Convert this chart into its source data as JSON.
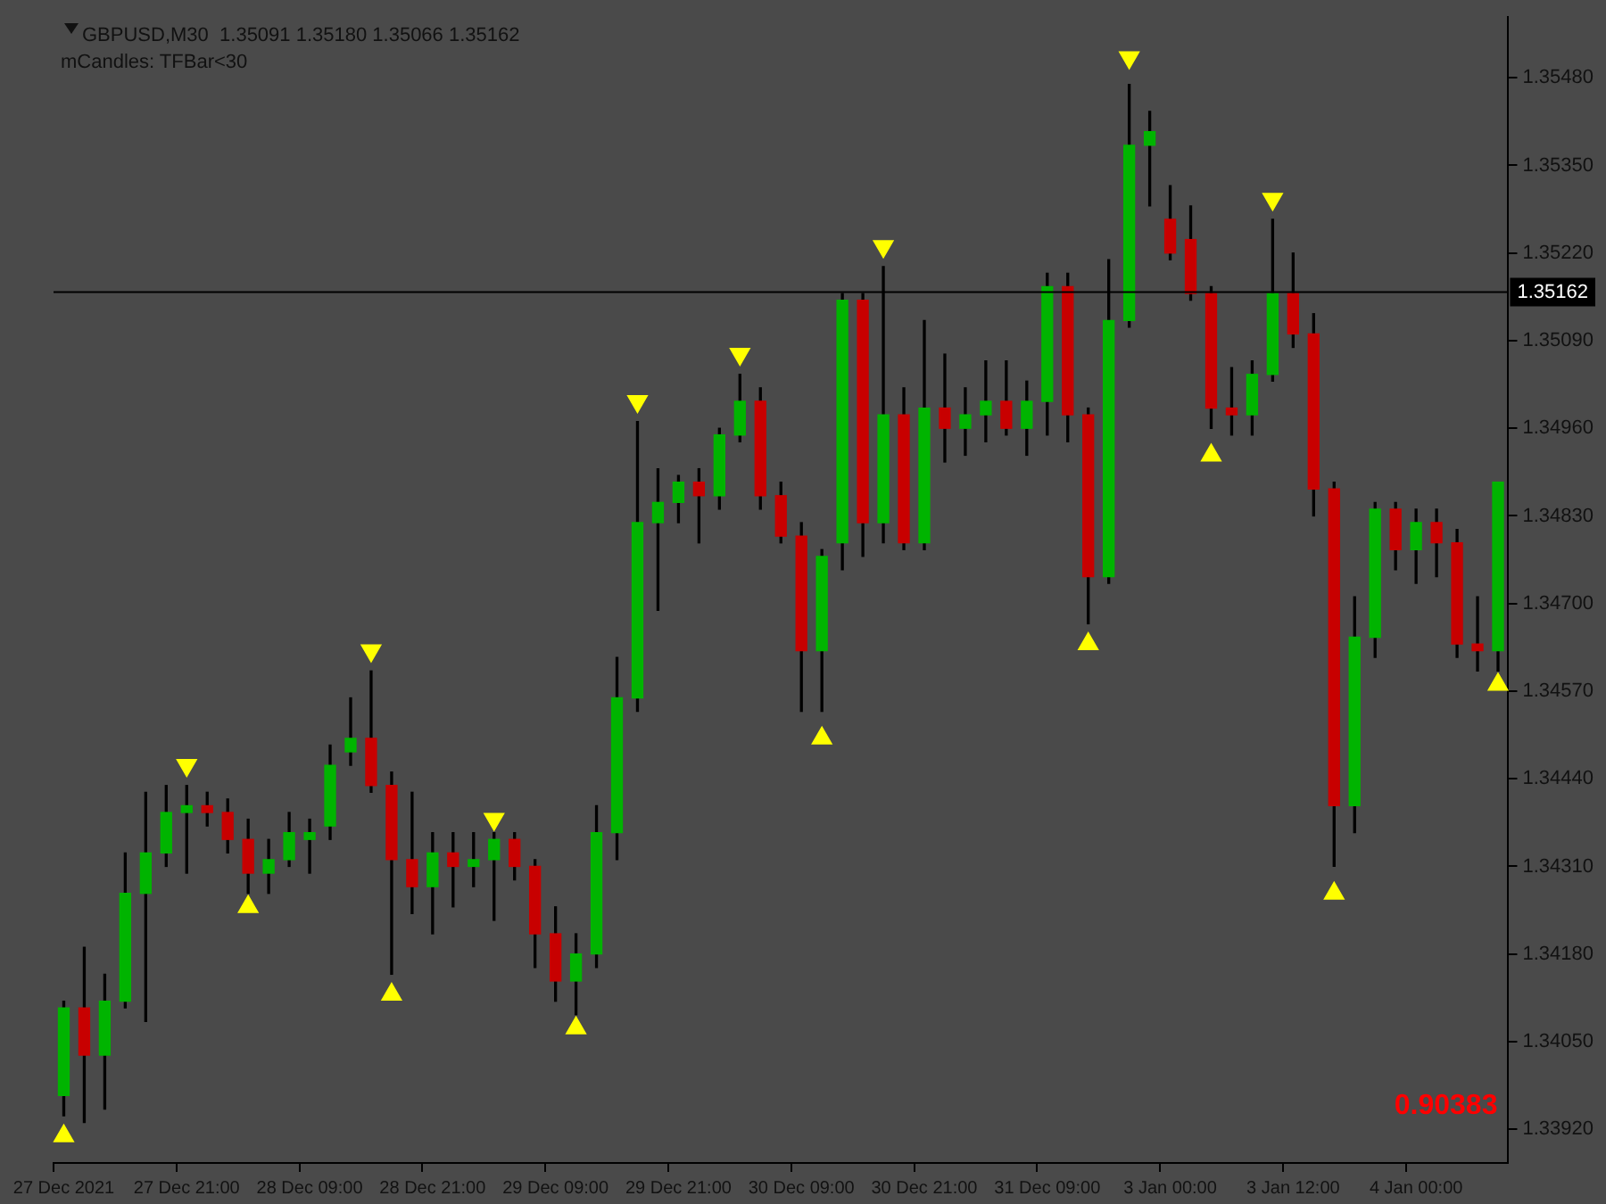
{
  "chart_data": {
    "type": "candlestick",
    "title": "GBPUSD,M30  1.35091 1.35180 1.35066 1.35162",
    "subtitle": "mCandles: TFBar<30",
    "categories": [
      "27 Dec 2021",
      null,
      null,
      null,
      null,
      null,
      "27 Dec 21:00",
      null,
      null,
      null,
      null,
      null,
      "28 Dec 09:00",
      null,
      null,
      null,
      null,
      null,
      "28 Dec 21:00",
      null,
      null,
      null,
      null,
      null,
      "29 Dec 09:00",
      null,
      null,
      null,
      null,
      null,
      "29 Dec 21:00",
      null,
      null,
      null,
      null,
      null,
      "30 Dec 09:00",
      null,
      null,
      null,
      null,
      null,
      "30 Dec 21:00",
      null,
      null,
      null,
      null,
      null,
      "31 Dec 09:00",
      null,
      null,
      null,
      null,
      null,
      "3 Jan 00:00",
      null,
      null,
      null,
      null,
      null,
      "3 Jan 12:00",
      null,
      null,
      null,
      null,
      null,
      "4 Jan 00:00",
      null,
      null,
      null,
      null
    ],
    "ohlc": [
      [
        1.3397,
        1.3411,
        1.3394,
        1.341
      ],
      [
        1.341,
        1.3419,
        1.3393,
        1.3403
      ],
      [
        1.3403,
        1.3415,
        1.3395,
        1.3411
      ],
      [
        1.3411,
        1.3433,
        1.341,
        1.3427
      ],
      [
        1.3427,
        1.3442,
        1.3408,
        1.3433
      ],
      [
        1.3433,
        1.3443,
        1.3431,
        1.3439
      ],
      [
        1.3439,
        1.3443,
        1.343,
        1.344
      ],
      [
        1.344,
        1.3442,
        1.3437,
        1.3439
      ],
      [
        1.3439,
        1.3441,
        1.3433,
        1.3435
      ],
      [
        1.3435,
        1.3438,
        1.3427,
        1.343
      ],
      [
        1.343,
        1.3435,
        1.3427,
        1.3432
      ],
      [
        1.3432,
        1.3439,
        1.3431,
        1.3436
      ],
      [
        1.3435,
        1.3438,
        1.343,
        1.3436
      ],
      [
        1.3437,
        1.3449,
        1.3435,
        1.3446
      ],
      [
        1.3448,
        1.3456,
        1.3446,
        1.345
      ],
      [
        1.345,
        1.346,
        1.3442,
        1.3443
      ],
      [
        1.3443,
        1.3445,
        1.3415,
        1.3432
      ],
      [
        1.3432,
        1.3442,
        1.3424,
        1.3428
      ],
      [
        1.3428,
        1.3436,
        1.3421,
        1.3433
      ],
      [
        1.3433,
        1.3436,
        1.3425,
        1.3431
      ],
      [
        1.3431,
        1.3436,
        1.3428,
        1.3432
      ],
      [
        1.3432,
        1.3436,
        1.3423,
        1.3435
      ],
      [
        1.3435,
        1.3436,
        1.3429,
        1.3431
      ],
      [
        1.3431,
        1.3432,
        1.3416,
        1.3421
      ],
      [
        1.3421,
        1.3425,
        1.3411,
        1.3414
      ],
      [
        1.3414,
        1.3421,
        1.3409,
        1.3418
      ],
      [
        1.3418,
        1.344,
        1.3416,
        1.3436
      ],
      [
        1.3436,
        1.3462,
        1.3432,
        1.3456
      ],
      [
        1.3456,
        1.3497,
        1.3454,
        1.3482
      ],
      [
        1.3482,
        1.349,
        1.3469,
        1.3485
      ],
      [
        1.3485,
        1.3489,
        1.3482,
        1.3488
      ],
      [
        1.3488,
        1.349,
        1.3479,
        1.3486
      ],
      [
        1.3486,
        1.3496,
        1.3484,
        1.3495
      ],
      [
        1.3495,
        1.3504,
        1.3494,
        1.35
      ],
      [
        1.35,
        1.3502,
        1.3484,
        1.3486
      ],
      [
        1.3486,
        1.3488,
        1.3479,
        1.348
      ],
      [
        1.348,
        1.3482,
        1.3454,
        1.3463
      ],
      [
        1.3463,
        1.3478,
        1.3454,
        1.3477
      ],
      [
        1.3479,
        1.3516,
        1.3475,
        1.3515
      ],
      [
        1.3515,
        1.3516,
        1.3477,
        1.3482
      ],
      [
        1.3482,
        1.352,
        1.3479,
        1.3498
      ],
      [
        1.3498,
        1.3502,
        1.3478,
        1.3479
      ],
      [
        1.3479,
        1.3512,
        1.3478,
        1.3499
      ],
      [
        1.3499,
        1.3507,
        1.3491,
        1.3496
      ],
      [
        1.3496,
        1.3502,
        1.3492,
        1.3498
      ],
      [
        1.3498,
        1.3506,
        1.3494,
        1.35
      ],
      [
        1.35,
        1.3506,
        1.3495,
        1.3496
      ],
      [
        1.3496,
        1.3503,
        1.3492,
        1.35
      ],
      [
        1.35,
        1.3519,
        1.3495,
        1.3517
      ],
      [
        1.3517,
        1.3519,
        1.3494,
        1.3498
      ],
      [
        1.3498,
        1.3499,
        1.3467,
        1.3474
      ],
      [
        1.3474,
        1.3521,
        1.3473,
        1.3512
      ],
      [
        1.3512,
        1.3547,
        1.3511,
        1.3538
      ],
      [
        1.3538,
        1.3543,
        1.3529,
        1.354
      ],
      [
        1.3527,
        1.3532,
        1.3521,
        1.3522
      ],
      [
        1.3524,
        1.3529,
        1.3515,
        1.3516
      ],
      [
        1.3516,
        1.3517,
        1.3496,
        1.3499
      ],
      [
        1.3499,
        1.3505,
        1.3495,
        1.3498
      ],
      [
        1.3498,
        1.3506,
        1.3495,
        1.3504
      ],
      [
        1.3504,
        1.3527,
        1.3503,
        1.3516
      ],
      [
        1.3516,
        1.3522,
        1.3508,
        1.351
      ],
      [
        1.351,
        1.3513,
        1.3483,
        1.3487
      ],
      [
        1.3487,
        1.3488,
        1.3431,
        1.344
      ],
      [
        1.344,
        1.3471,
        1.3436,
        1.3465
      ],
      [
        1.3465,
        1.3485,
        1.3462,
        1.3484
      ],
      [
        1.3484,
        1.3485,
        1.3475,
        1.3478
      ],
      [
        1.3478,
        1.3484,
        1.3473,
        1.3482
      ],
      [
        1.3482,
        1.3484,
        1.3474,
        1.3479
      ],
      [
        1.3479,
        1.3481,
        1.3462,
        1.3464
      ],
      [
        1.3464,
        1.3471,
        1.346,
        1.3463
      ],
      [
        1.3463,
        1.3488,
        1.346,
        1.3488
      ]
    ],
    "colors": [
      "#00b400",
      "#c80000",
      "#00b400",
      "#00b400",
      "#00b400",
      "#00b400",
      "#00b400",
      "#c80000",
      "#c80000",
      "#c80000",
      "#00b400",
      "#00b400",
      "#00b400",
      "#00b400",
      "#00b400",
      "#c80000",
      "#c80000",
      "#c80000",
      "#00b400",
      "#c80000",
      "#00b400",
      "#00b400",
      "#c80000",
      "#c80000",
      "#c80000",
      "#00b400",
      "#00b400",
      "#00b400",
      "#00b400",
      "#00b400",
      "#00b400",
      "#c80000",
      "#00b400",
      "#00b400",
      "#c80000",
      "#c80000",
      "#c80000",
      "#00b400",
      "#00b400",
      "#c80000",
      "#00b400",
      "#c80000",
      "#00b400",
      "#c80000",
      "#00b400",
      "#00b400",
      "#c80000",
      "#00b400",
      "#00b400",
      "#c80000",
      "#c80000",
      "#00b400",
      "#00b400",
      "#00b400",
      "#c80000",
      "#c80000",
      "#c80000",
      "#c80000",
      "#00b400",
      "#00b400",
      "#c80000",
      "#c80000",
      "#c80000",
      "#00b400",
      "#00b400",
      "#c80000",
      "#00b400",
      "#c80000",
      "#c80000",
      "#c80000",
      "#00b400"
    ],
    "series": [
      {
        "type": "scatter",
        "color": "#ffff00",
        "marker": "triangle",
        "values": [
          null,
          null,
          null,
          null,
          null,
          null,
          1.3446,
          null,
          null,
          null,
          null,
          null,
          null,
          null,
          null,
          1.3463,
          null,
          null,
          null,
          null,
          null,
          1.3438,
          null,
          null,
          null,
          null,
          null,
          null,
          1.35,
          null,
          null,
          null,
          null,
          1.3507,
          null,
          null,
          null,
          null,
          null,
          null,
          1.3523,
          null,
          null,
          null,
          null,
          null,
          null,
          null,
          null,
          null,
          null,
          null,
          1.3551,
          null,
          null,
          null,
          null,
          null,
          null,
          1.353,
          null,
          null,
          null,
          null,
          null,
          null,
          null,
          null,
          null,
          null,
          null
        ]
      },
      {
        "type": "scatter",
        "color": "#ffff00",
        "marker": "triangle",
        "values": [
          1.3391,
          null,
          null,
          null,
          null,
          null,
          null,
          null,
          null,
          1.3425,
          null,
          null,
          null,
          null,
          null,
          null,
          1.3412,
          null,
          null,
          null,
          null,
          null,
          null,
          null,
          null,
          1.3407,
          null,
          null,
          null,
          null,
          null,
          null,
          null,
          null,
          null,
          null,
          null,
          1.345,
          null,
          null,
          null,
          null,
          null,
          null,
          null,
          null,
          null,
          null,
          null,
          null,
          1.3464,
          null,
          null,
          null,
          null,
          null,
          1.3492,
          null,
          null,
          null,
          null,
          null,
          1.3427,
          null,
          null,
          null,
          null,
          null,
          null,
          null,
          1.3458
        ]
      }
    ],
    "ylim": [
      1.3387,
      1.3557
    ],
    "yticks": [
      {
        "value": 1.3392,
        "label": "1.33920"
      },
      {
        "value": 1.3405,
        "label": "1.34050"
      },
      {
        "value": 1.3418,
        "label": "1.34180"
      },
      {
        "value": 1.3431,
        "label": "1.34310"
      },
      {
        "value": 1.3444,
        "label": "1.34440"
      },
      {
        "value": 1.3457,
        "label": "1.34570"
      },
      {
        "value": 1.347,
        "label": "1.34700"
      },
      {
        "value": 1.3483,
        "label": "1.34830"
      },
      {
        "value": 1.3496,
        "label": "1.34960"
      },
      {
        "value": 1.3509,
        "label": "1.35090"
      },
      {
        "value": 1.3522,
        "label": "1.35220"
      },
      {
        "value": 1.3535,
        "label": "1.35350"
      },
      {
        "value": 1.3548,
        "label": "1.35480"
      }
    ],
    "ref_lines": [
      {
        "axis": "y",
        "value": 1.35162,
        "label": "1.35162",
        "color": "#000000"
      }
    ],
    "annotations": [
      "0.90383"
    ]
  }
}
